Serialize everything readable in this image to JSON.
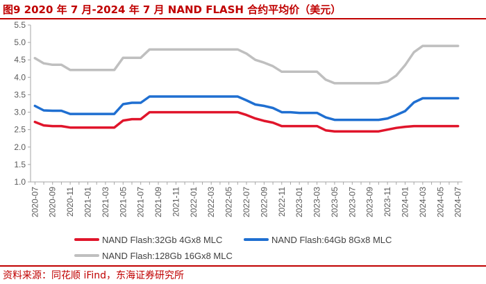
{
  "title": "图9  2020 年 7 月-2024 年 7 月 NAND FLASH 合约平均价（美元）",
  "source": "资料来源：同花顺 iFind，东海证券研究所",
  "chart_data": {
    "type": "line",
    "ylim": [
      1.0,
      5.5
    ],
    "yticks": [
      "1.0",
      "1.5",
      "2.0",
      "2.5",
      "3.0",
      "3.5",
      "4.0",
      "4.5",
      "5.0",
      "5.5"
    ],
    "ytick_values": [
      1.0,
      1.5,
      2.0,
      2.5,
      3.0,
      3.5,
      4.0,
      4.5,
      5.0,
      5.5
    ],
    "x": [
      "2020-07",
      "2020-08",
      "2020-09",
      "2020-10",
      "2020-11",
      "2020-12",
      "2021-01",
      "2021-02",
      "2021-03",
      "2021-04",
      "2021-05",
      "2021-06",
      "2021-07",
      "2021-08",
      "2021-09",
      "2021-10",
      "2021-11",
      "2021-12",
      "2022-01",
      "2022-02",
      "2022-03",
      "2022-04",
      "2022-05",
      "2022-06",
      "2022-07",
      "2022-08",
      "2022-09",
      "2022-10",
      "2022-11",
      "2022-12",
      "2023-01",
      "2023-02",
      "2023-03",
      "2023-04",
      "2023-05",
      "2023-06",
      "2023-07",
      "2023-08",
      "2023-09",
      "2023-10",
      "2023-11",
      "2023-12",
      "2024-01",
      "2024-02",
      "2024-03",
      "2024-04",
      "2024-05",
      "2024-06",
      "2024-07"
    ],
    "xtick_labels": [
      "2020-07",
      "2020-09",
      "2020-11",
      "2021-01",
      "2021-03",
      "2021-05",
      "2021-07",
      "2021-09",
      "2021-11",
      "2022-01",
      "2022-03",
      "2022-05",
      "2022-07",
      "2022-09",
      "2022-11",
      "2023-01",
      "2023-03",
      "2023-05",
      "2023-07",
      "2023-09",
      "2023-11",
      "2024-01",
      "2024-03",
      "2024-05",
      "2024-07"
    ],
    "grid": false,
    "legend_position": "bottom",
    "series": [
      {
        "name": "NAND Flash:32Gb 4Gx8 MLC",
        "color": "#e0152b",
        "values": [
          2.72,
          2.62,
          2.6,
          2.6,
          2.56,
          2.56,
          2.56,
          2.56,
          2.56,
          2.56,
          2.76,
          2.8,
          2.8,
          3.0,
          3.0,
          3.0,
          3.0,
          3.0,
          3.0,
          3.0,
          3.0,
          3.0,
          3.0,
          3.0,
          2.92,
          2.82,
          2.75,
          2.7,
          2.6,
          2.6,
          2.6,
          2.6,
          2.6,
          2.48,
          2.45,
          2.45,
          2.45,
          2.45,
          2.45,
          2.45,
          2.5,
          2.55,
          2.58,
          2.6,
          2.6,
          2.6,
          2.6,
          2.6,
          2.6
        ]
      },
      {
        "name": "NAND Flash:64Gb 8Gx8 MLC",
        "color": "#1f6fd1",
        "values": [
          3.18,
          3.05,
          3.04,
          3.04,
          2.95,
          2.95,
          2.95,
          2.95,
          2.95,
          2.95,
          3.23,
          3.27,
          3.27,
          3.45,
          3.45,
          3.45,
          3.45,
          3.45,
          3.45,
          3.45,
          3.45,
          3.45,
          3.45,
          3.45,
          3.34,
          3.22,
          3.18,
          3.12,
          3.0,
          3.0,
          2.98,
          2.98,
          2.98,
          2.85,
          2.78,
          2.78,
          2.78,
          2.78,
          2.78,
          2.78,
          2.82,
          2.92,
          3.03,
          3.28,
          3.4,
          3.4,
          3.4,
          3.4,
          3.4
        ]
      },
      {
        "name": "NAND Flash:128Gb 16Gx8 MLC",
        "color": "#bfbfbf",
        "values": [
          4.55,
          4.4,
          4.36,
          4.36,
          4.21,
          4.21,
          4.21,
          4.21,
          4.21,
          4.21,
          4.56,
          4.56,
          4.56,
          4.8,
          4.8,
          4.8,
          4.8,
          4.8,
          4.8,
          4.8,
          4.8,
          4.8,
          4.8,
          4.8,
          4.68,
          4.5,
          4.42,
          4.32,
          4.16,
          4.16,
          4.16,
          4.16,
          4.16,
          3.93,
          3.83,
          3.83,
          3.83,
          3.83,
          3.83,
          3.83,
          3.88,
          4.05,
          4.35,
          4.72,
          4.9,
          4.9,
          4.9,
          4.9,
          4.9
        ]
      }
    ]
  }
}
